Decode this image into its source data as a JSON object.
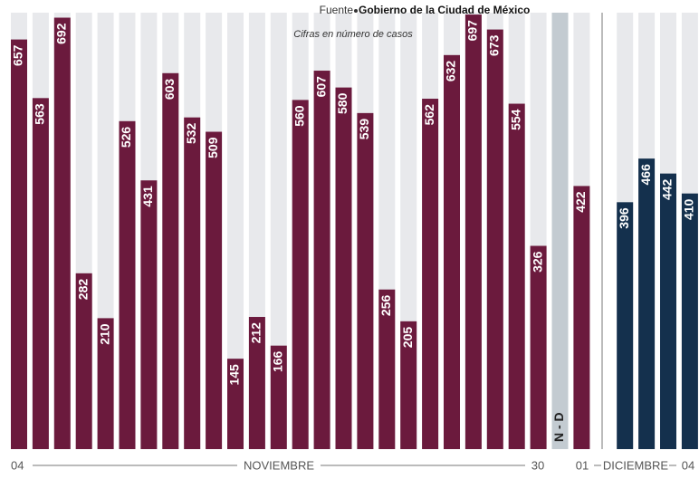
{
  "chart_data": {
    "type": "bar",
    "source_label": "Fuente",
    "source": "Gobierno de la Ciudad de México",
    "subtitle": "Cifras en número de casos",
    "values": [
      657,
      563,
      692,
      282,
      210,
      526,
      431,
      603,
      532,
      509,
      145,
      212,
      166,
      560,
      607,
      580,
      539,
      256,
      205,
      562,
      632,
      697,
      673,
      554,
      326,
      null,
      422,
      396,
      466,
      442,
      410
    ],
    "colors": [
      "#6b1a3d",
      "#6b1a3d",
      "#6b1a3d",
      "#6b1a3d",
      "#6b1a3d",
      "#6b1a3d",
      "#6b1a3d",
      "#6b1a3d",
      "#6b1a3d",
      "#6b1a3d",
      "#6b1a3d",
      "#6b1a3d",
      "#6b1a3d",
      "#6b1a3d",
      "#6b1a3d",
      "#6b1a3d",
      "#6b1a3d",
      "#6b1a3d",
      "#6b1a3d",
      "#6b1a3d",
      "#6b1a3d",
      "#6b1a3d",
      "#6b1a3d",
      "#6b1a3d",
      "#6b1a3d",
      "#c3cbd1",
      "#6b1a3d",
      "#14304d",
      "#14304d",
      "#14304d",
      "#14304d"
    ],
    "no_data_label": "N - D",
    "ylim": [
      0,
      700
    ],
    "axis_labels": {
      "nov_start": "04",
      "nov": "NOVIEMBRE",
      "nov_end": "30",
      "dec_start": "01",
      "dec": "DICIEMBRE",
      "dec_end": "04"
    }
  }
}
